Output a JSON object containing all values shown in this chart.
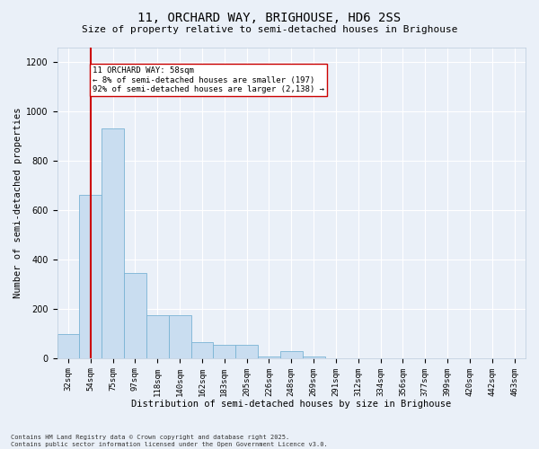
{
  "title1": "11, ORCHARD WAY, BRIGHOUSE, HD6 2SS",
  "title2": "Size of property relative to semi-detached houses in Brighouse",
  "xlabel": "Distribution of semi-detached houses by size in Brighouse",
  "ylabel": "Number of semi-detached properties",
  "bin_labels": [
    "32sqm",
    "54sqm",
    "75sqm",
    "97sqm",
    "118sqm",
    "140sqm",
    "162sqm",
    "183sqm",
    "205sqm",
    "226sqm",
    "248sqm",
    "269sqm",
    "291sqm",
    "312sqm",
    "334sqm",
    "356sqm",
    "377sqm",
    "399sqm",
    "420sqm",
    "442sqm",
    "463sqm"
  ],
  "bar_heights": [
    98,
    660,
    930,
    345,
    175,
    175,
    65,
    55,
    55,
    5,
    30,
    5,
    0,
    0,
    0,
    0,
    0,
    0,
    0,
    0,
    0
  ],
  "bar_color": "#c9ddf0",
  "bar_edge_color": "#7ab3d4",
  "red_line_color": "#cc0000",
  "annotation_box_color": "#ffffff",
  "annotation_box_edge": "#cc0000",
  "annotation_text_line1": "11 ORCHARD WAY: 58sqm",
  "annotation_text_line2": "← 8% of semi-detached houses are smaller (197)",
  "annotation_text_line3": "92% of semi-detached houses are larger (2,138) →",
  "ylim": [
    0,
    1260
  ],
  "yticks": [
    0,
    200,
    400,
    600,
    800,
    1000,
    1200
  ],
  "footnote": "Contains HM Land Registry data © Crown copyright and database right 2025.\nContains public sector information licensed under the Open Government Licence v3.0.",
  "bg_color": "#eaf0f8",
  "plot_bg_color": "#eaf0f8",
  "grid_color": "#ffffff",
  "title1_fontsize": 10,
  "title2_fontsize": 8,
  "xlabel_fontsize": 7.5,
  "ylabel_fontsize": 7.5,
  "footnote_fontsize": 5,
  "tick_fontsize": 6.5,
  "annotation_fontsize": 6.5,
  "red_line_index": 1,
  "annotation_line_index": 1.05
}
